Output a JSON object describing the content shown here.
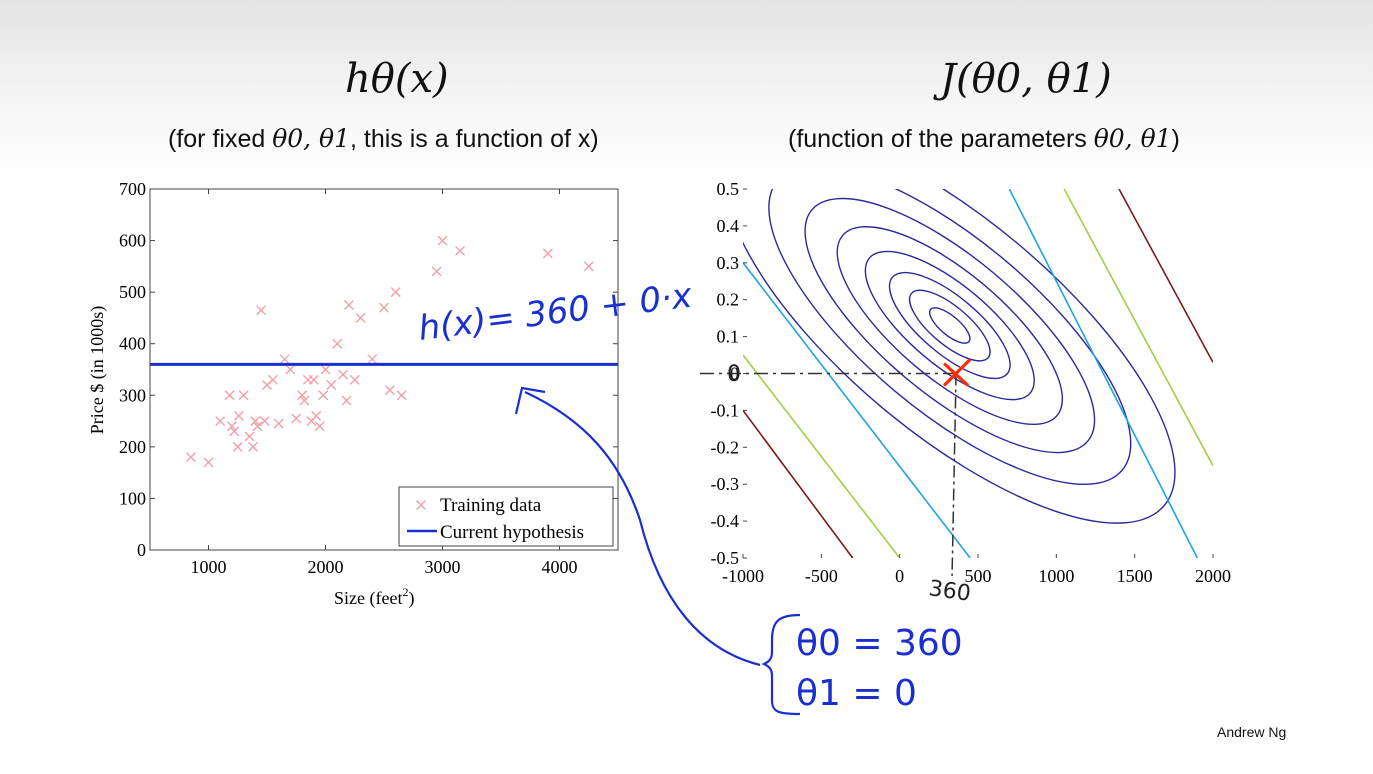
{
  "left_panel": {
    "title": "hθ(x)",
    "subtitle_parts": [
      "(for fixed ",
      "θ0, θ1",
      ", this is a function of x)"
    ]
  },
  "right_panel": {
    "title": "J(θ0, θ1)",
    "subtitle_parts": [
      "(function of the parameters ",
      "θ0, θ1",
      ")"
    ]
  },
  "annotations": {
    "hypothesis_equation": "h(x)= 360 + 0·x",
    "theta0_note": "θ0 = 360",
    "theta1_note": "θ1 = 0",
    "theta0_marker": "360",
    "theta1_marker": "0"
  },
  "footer": {
    "credit": "Andrew Ng"
  },
  "colors": {
    "training_marker": "#f0a0a8",
    "hypothesis_line": "#1a2fd0",
    "ink": "#1a2fd0",
    "minimum_marker": "#ff2a00",
    "contour_inner": "#2c2a9a",
    "contour_mid": "#1fa3e0",
    "contour_outer": "#9fd045",
    "contour_far": "#7a1a1a"
  },
  "chart_data": [
    {
      "type": "scatter",
      "xlabel": "Size (feet2)",
      "ylabel": "Price $ (in 1000s)",
      "xlim": [
        500,
        4500
      ],
      "ylim": [
        0,
        700
      ],
      "xticks": [
        1000,
        2000,
        3000,
        4000
      ],
      "yticks": [
        0,
        100,
        200,
        300,
        400,
        500,
        600,
        700
      ],
      "legend_position": "bottom-right",
      "series": [
        {
          "name": "Training data",
          "marker": "x",
          "points": [
            [
              850,
              180
            ],
            [
              1000,
              170
            ],
            [
              1100,
              250
            ],
            [
              1200,
              240
            ],
            [
              1180,
              300
            ],
            [
              1220,
              230
            ],
            [
              1250,
              200
            ],
            [
              1260,
              260
            ],
            [
              1300,
              300
            ],
            [
              1350,
              220
            ],
            [
              1380,
              200
            ],
            [
              1400,
              250
            ],
            [
              1420,
              240
            ],
            [
              1450,
              465
            ],
            [
              1480,
              250
            ],
            [
              1500,
              320
            ],
            [
              1550,
              330
            ],
            [
              1600,
              245
            ],
            [
              1650,
              370
            ],
            [
              1700,
              350
            ],
            [
              1750,
              255
            ],
            [
              1800,
              300
            ],
            [
              1820,
              290
            ],
            [
              1850,
              330
            ],
            [
              1880,
              250
            ],
            [
              1900,
              330
            ],
            [
              1920,
              260
            ],
            [
              1950,
              240
            ],
            [
              1980,
              300
            ],
            [
              2000,
              350
            ],
            [
              2050,
              320
            ],
            [
              2100,
              400
            ],
            [
              2150,
              340
            ],
            [
              2180,
              290
            ],
            [
              2200,
              475
            ],
            [
              2250,
              330
            ],
            [
              2300,
              450
            ],
            [
              2400,
              370
            ],
            [
              2500,
              470
            ],
            [
              2550,
              310
            ],
            [
              2600,
              500
            ],
            [
              2650,
              300
            ],
            [
              2950,
              540
            ],
            [
              3000,
              600
            ],
            [
              3150,
              580
            ],
            [
              3900,
              575
            ],
            [
              4250,
              550
            ]
          ]
        },
        {
          "name": "Current hypothesis",
          "type": "line",
          "x": [
            500,
            4500
          ],
          "y": [
            360,
            360
          ]
        }
      ]
    },
    {
      "type": "contour",
      "xlim": [
        -1000,
        2000
      ],
      "ylim": [
        -0.5,
        0.5
      ],
      "xticks": [
        -1000,
        -500,
        0,
        500,
        1000,
        1500,
        2000
      ],
      "yticks": [
        -0.5,
        -0.4,
        -0.3,
        -0.2,
        -0.1,
        0,
        0.1,
        0.2,
        0.3,
        0.4,
        0.5
      ],
      "minimum": {
        "theta0": 320,
        "theta1": 0.13
      },
      "selected_point": {
        "theta0": 360,
        "theta1": 0
      },
      "contour_scales": [
        0.1,
        0.2,
        0.3,
        0.42,
        0.56,
        0.72,
        0.9,
        1.12
      ],
      "outer_lines": [
        {
          "x1": 450,
          "y1": -0.5,
          "x2": -1000,
          "y2": 0.3,
          "color": "#1fa3e0"
        },
        {
          "x1": 700,
          "y1": 0.5,
          "x2": 1900,
          "y2": -0.5,
          "color": "#1fa3e0"
        },
        {
          "x1": 0,
          "y1": -0.5,
          "x2": -1000,
          "y2": 0.05,
          "color": "#9fd045"
        },
        {
          "x1": 1050,
          "y1": 0.5,
          "x2": 2000,
          "y2": -0.25,
          "color": "#9fd045"
        },
        {
          "x1": -300,
          "y1": -0.5,
          "x2": -1000,
          "y2": -0.1,
          "color": "#7a1a1a"
        },
        {
          "x1": 1400,
          "y1": 0.5,
          "x2": 2000,
          "y2": 0.03,
          "color": "#7a1a1a"
        }
      ]
    }
  ]
}
